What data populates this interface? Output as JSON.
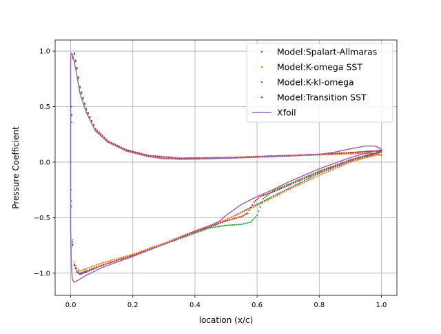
{
  "chart_data": {
    "type": "line",
    "title": "",
    "xlabel": "location (x/c)",
    "ylabel": "Pressure Coefficient",
    "xlim": [
      -0.05,
      1.05
    ],
    "ylim": [
      -1.2,
      1.1
    ],
    "xticks": [
      0.0,
      0.2,
      0.4,
      0.6,
      0.8,
      1.0
    ],
    "xtick_labels": [
      "0.0",
      "0.2",
      "0.4",
      "0.6",
      "0.8",
      "1.0"
    ],
    "yticks": [
      -1.0,
      -0.5,
      0.0,
      0.5,
      1.0
    ],
    "ytick_labels": [
      "−1.0",
      "−0.5",
      "0.0",
      "0.5",
      "1.0"
    ],
    "grid": true,
    "legend_position": "top-right",
    "series": [
      {
        "name": "Model:Spalart-Allmaras",
        "style": "points",
        "color": "#1f77b4",
        "upper": [
          [
            0.0,
            0.0
          ],
          [
            0.003,
            0.5
          ],
          [
            0.007,
            0.95
          ],
          [
            0.012,
            0.98
          ],
          [
            0.02,
            0.85
          ],
          [
            0.03,
            0.68
          ],
          [
            0.05,
            0.48
          ],
          [
            0.08,
            0.3
          ],
          [
            0.12,
            0.19
          ],
          [
            0.18,
            0.11
          ],
          [
            0.25,
            0.06
          ],
          [
            0.35,
            0.035
          ],
          [
            0.5,
            0.04
          ],
          [
            0.6,
            0.05
          ],
          [
            0.7,
            0.06
          ],
          [
            0.8,
            0.07
          ],
          [
            0.9,
            0.085
          ],
          [
            0.95,
            0.095
          ],
          [
            0.98,
            0.1
          ],
          [
            1.0,
            0.1
          ]
        ],
        "lower": [
          [
            0.0,
            0.0
          ],
          [
            0.002,
            -0.4
          ],
          [
            0.006,
            -0.75
          ],
          [
            0.012,
            -0.92
          ],
          [
            0.02,
            -0.98
          ],
          [
            0.03,
            -1.0
          ],
          [
            0.05,
            -0.98
          ],
          [
            0.1,
            -0.93
          ],
          [
            0.2,
            -0.84
          ],
          [
            0.3,
            -0.74
          ],
          [
            0.4,
            -0.63
          ],
          [
            0.5,
            -0.52
          ],
          [
            0.6,
            -0.38
          ],
          [
            0.7,
            -0.24
          ],
          [
            0.8,
            -0.1
          ],
          [
            0.9,
            0.01
          ],
          [
            0.95,
            0.05
          ],
          [
            0.98,
            0.07
          ],
          [
            1.0,
            0.09
          ]
        ]
      },
      {
        "name": "Model:K-omega SST",
        "style": "points",
        "color": "#ff7f0e",
        "upper": [
          [
            0.0,
            0.0
          ],
          [
            0.003,
            0.43
          ],
          [
            0.007,
            0.93
          ],
          [
            0.012,
            0.97
          ],
          [
            0.02,
            0.84
          ],
          [
            0.03,
            0.67
          ],
          [
            0.05,
            0.47
          ],
          [
            0.08,
            0.29
          ],
          [
            0.12,
            0.18
          ],
          [
            0.18,
            0.1
          ],
          [
            0.25,
            0.05
          ],
          [
            0.35,
            0.025
          ],
          [
            0.5,
            0.035
          ],
          [
            0.6,
            0.045
          ],
          [
            0.7,
            0.055
          ],
          [
            0.8,
            0.065
          ],
          [
            0.9,
            0.075
          ],
          [
            0.95,
            0.08
          ],
          [
            0.98,
            0.075
          ],
          [
            1.0,
            0.06
          ]
        ],
        "lower": [
          [
            0.0,
            0.0
          ],
          [
            0.002,
            -0.25
          ],
          [
            0.006,
            -0.7
          ],
          [
            0.012,
            -0.9
          ],
          [
            0.02,
            -0.96
          ],
          [
            0.03,
            -0.98
          ],
          [
            0.05,
            -0.96
          ],
          [
            0.1,
            -0.91
          ],
          [
            0.2,
            -0.83
          ],
          [
            0.3,
            -0.73
          ],
          [
            0.4,
            -0.62
          ],
          [
            0.5,
            -0.52
          ],
          [
            0.6,
            -0.39
          ],
          [
            0.7,
            -0.25
          ],
          [
            0.8,
            -0.12
          ],
          [
            0.9,
            0.0
          ],
          [
            0.95,
            0.04
          ],
          [
            0.98,
            0.06
          ],
          [
            1.0,
            0.07
          ]
        ]
      },
      {
        "name": "Model:K-kl-omega",
        "style": "points",
        "color": "#2ca02c",
        "upper": [
          [
            0.0,
            0.0
          ],
          [
            0.003,
            0.36
          ],
          [
            0.007,
            0.94
          ],
          [
            0.012,
            0.97
          ],
          [
            0.02,
            0.84
          ],
          [
            0.03,
            0.67
          ],
          [
            0.05,
            0.47
          ],
          [
            0.08,
            0.3
          ],
          [
            0.12,
            0.19
          ],
          [
            0.18,
            0.11
          ],
          [
            0.25,
            0.06
          ],
          [
            0.35,
            0.035
          ],
          [
            0.5,
            0.04
          ],
          [
            0.6,
            0.05
          ],
          [
            0.7,
            0.06
          ],
          [
            0.8,
            0.07
          ],
          [
            0.9,
            0.085
          ],
          [
            0.95,
            0.095
          ],
          [
            0.98,
            0.1
          ],
          [
            1.0,
            0.1
          ]
        ],
        "lower": [
          [
            0.0,
            0.0
          ],
          [
            0.002,
            -0.35
          ],
          [
            0.006,
            -0.72
          ],
          [
            0.012,
            -0.93
          ],
          [
            0.02,
            -0.99
          ],
          [
            0.03,
            -1.01
          ],
          [
            0.05,
            -0.99
          ],
          [
            0.1,
            -0.93
          ],
          [
            0.2,
            -0.84
          ],
          [
            0.3,
            -0.74
          ],
          [
            0.4,
            -0.64
          ],
          [
            0.45,
            -0.59
          ],
          [
            0.5,
            -0.57
          ],
          [
            0.55,
            -0.56
          ],
          [
            0.58,
            -0.54
          ],
          [
            0.6,
            -0.48
          ],
          [
            0.62,
            -0.33
          ],
          [
            0.65,
            -0.26
          ],
          [
            0.7,
            -0.2
          ],
          [
            0.8,
            -0.08
          ],
          [
            0.9,
            0.02
          ],
          [
            0.95,
            0.06
          ],
          [
            0.98,
            0.08
          ],
          [
            1.0,
            0.1
          ]
        ]
      },
      {
        "name": "Model:Transition SST",
        "style": "points",
        "color": "#d62728",
        "upper": [
          [
            0.0,
            0.0
          ],
          [
            0.003,
            0.42
          ],
          [
            0.007,
            0.94
          ],
          [
            0.012,
            0.98
          ],
          [
            0.02,
            0.85
          ],
          [
            0.03,
            0.68
          ],
          [
            0.05,
            0.48
          ],
          [
            0.08,
            0.3
          ],
          [
            0.12,
            0.19
          ],
          [
            0.18,
            0.11
          ],
          [
            0.25,
            0.06
          ],
          [
            0.35,
            0.035
          ],
          [
            0.5,
            0.04
          ],
          [
            0.6,
            0.05
          ],
          [
            0.7,
            0.06
          ],
          [
            0.8,
            0.07
          ],
          [
            0.9,
            0.085
          ],
          [
            0.95,
            0.095
          ],
          [
            0.98,
            0.1
          ],
          [
            1.0,
            0.11
          ]
        ],
        "lower": [
          [
            0.0,
            0.0
          ],
          [
            0.002,
            -0.4
          ],
          [
            0.006,
            -0.74
          ],
          [
            0.012,
            -0.93
          ],
          [
            0.02,
            -0.99
          ],
          [
            0.03,
            -1.01
          ],
          [
            0.05,
            -0.99
          ],
          [
            0.1,
            -0.93
          ],
          [
            0.2,
            -0.84
          ],
          [
            0.3,
            -0.74
          ],
          [
            0.4,
            -0.63
          ],
          [
            0.5,
            -0.53
          ],
          [
            0.55,
            -0.49
          ],
          [
            0.57,
            -0.46
          ],
          [
            0.59,
            -0.36
          ],
          [
            0.61,
            -0.31
          ],
          [
            0.65,
            -0.27
          ],
          [
            0.7,
            -0.21
          ],
          [
            0.8,
            -0.09
          ],
          [
            0.9,
            0.02
          ],
          [
            0.95,
            0.06
          ],
          [
            0.98,
            0.08
          ],
          [
            1.0,
            0.1
          ]
        ]
      },
      {
        "name": "Xfoil",
        "style": "line",
        "color": "#9467bd",
        "path": [
          [
            1.0,
            0.12
          ],
          [
            0.98,
            0.145
          ],
          [
            0.95,
            0.145
          ],
          [
            0.9,
            0.12
          ],
          [
            0.85,
            0.09
          ],
          [
            0.8,
            0.07
          ],
          [
            0.7,
            0.055
          ],
          [
            0.6,
            0.045
          ],
          [
            0.5,
            0.035
          ],
          [
            0.4,
            0.028
          ],
          [
            0.3,
            0.03
          ],
          [
            0.25,
            0.05
          ],
          [
            0.18,
            0.1
          ],
          [
            0.12,
            0.18
          ],
          [
            0.08,
            0.28
          ],
          [
            0.05,
            0.45
          ],
          [
            0.03,
            0.62
          ],
          [
            0.02,
            0.78
          ],
          [
            0.012,
            0.9
          ],
          [
            0.006,
            0.97
          ],
          [
            0.002,
            0.98
          ],
          [
            0.0,
            0.95
          ],
          [
            0.0,
            0.0
          ],
          [
            0.0,
            -0.6
          ],
          [
            0.002,
            -0.9
          ],
          [
            0.005,
            -1.05
          ],
          [
            0.01,
            -1.08
          ],
          [
            0.02,
            -1.07
          ],
          [
            0.05,
            -1.02
          ],
          [
            0.1,
            -0.95
          ],
          [
            0.2,
            -0.85
          ],
          [
            0.3,
            -0.74
          ],
          [
            0.4,
            -0.62
          ],
          [
            0.45,
            -0.57
          ],
          [
            0.48,
            -0.53
          ],
          [
            0.5,
            -0.48
          ],
          [
            0.52,
            -0.44
          ],
          [
            0.55,
            -0.38
          ],
          [
            0.6,
            -0.31
          ],
          [
            0.65,
            -0.25
          ],
          [
            0.7,
            -0.18
          ],
          [
            0.75,
            -0.12
          ],
          [
            0.8,
            -0.06
          ],
          [
            0.85,
            -0.01
          ],
          [
            0.9,
            0.04
          ],
          [
            0.95,
            0.08
          ],
          [
            0.98,
            0.1
          ],
          [
            1.0,
            0.11
          ]
        ]
      }
    ]
  }
}
